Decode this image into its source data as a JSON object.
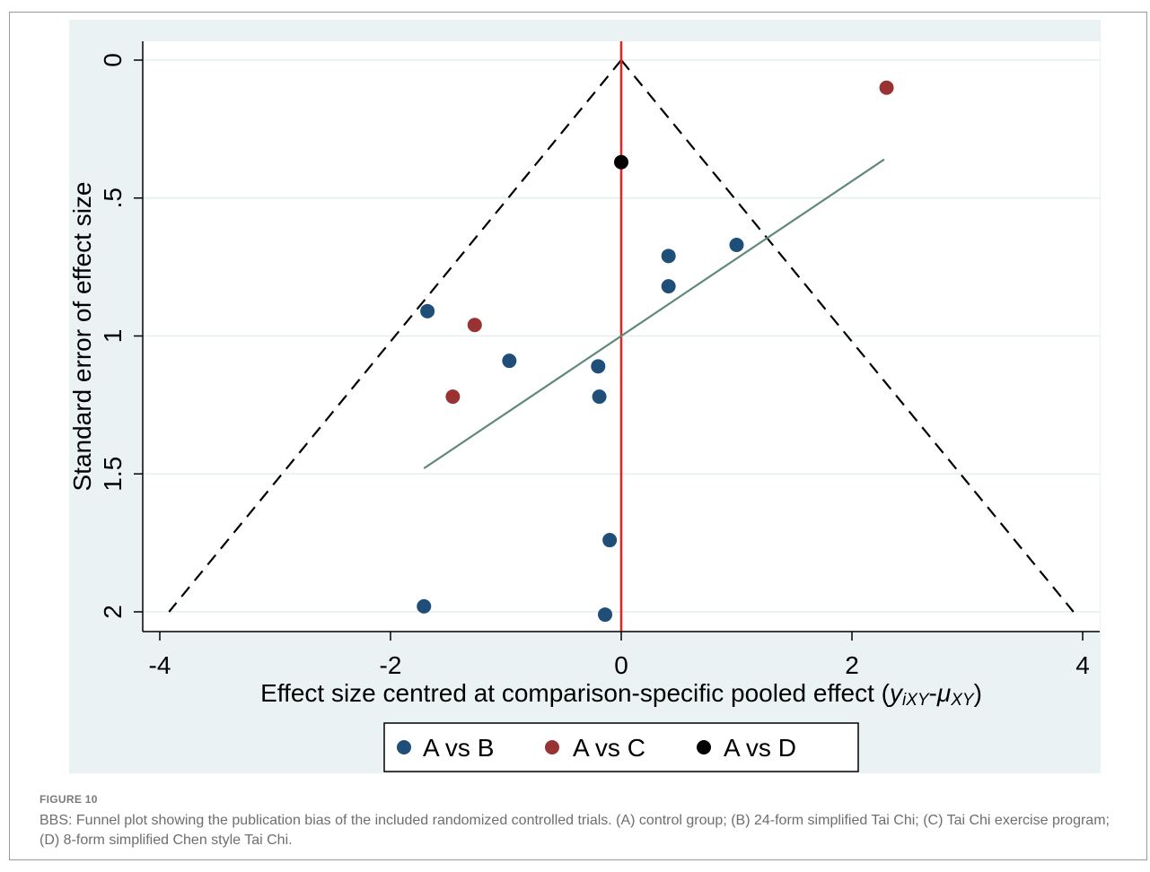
{
  "caption": {
    "label": "FIGURE 10",
    "text": "BBS: Funnel plot showing the publication bias of the included randomized controlled trials. (A) control group; (B) 24-form simplified Tai Chi; (C) Tai Chi exercise program; (D) 8-form simplified Chen style Tai Chi."
  },
  "chart_data": {
    "type": "scatter",
    "xlabel_main": "Effect size centred at comparison-specific pooled effect (",
    "xlabel_sym1": "y",
    "xlabel_sub1": "iXY",
    "xlabel_dash": "-",
    "xlabel_sym2": "μ",
    "xlabel_sub2": "XY",
    "xlabel_close": ")",
    "ylabel": "Standard error of effect size",
    "xlim": [
      -4.1,
      4.1
    ],
    "ylim": [
      0,
      2.07
    ],
    "y_reversed": true,
    "x_ticks": [
      -4,
      -2,
      0,
      2,
      4
    ],
    "x_tick_labels": [
      "-4",
      "-2",
      "0",
      "2",
      "4"
    ],
    "y_ticks": [
      0,
      0.5,
      1,
      1.5,
      2
    ],
    "y_tick_labels": [
      "0",
      ".5",
      "1",
      "1.5",
      "2"
    ],
    "grid": "horizontal",
    "legend_position": "bottom",
    "series": [
      {
        "name": "A vs B",
        "color": "#1f4e79",
        "points": [
          {
            "x": -1.68,
            "y": 0.91
          },
          {
            "x": -0.97,
            "y": 1.09
          },
          {
            "x": -0.2,
            "y": 1.11
          },
          {
            "x": -0.19,
            "y": 1.22
          },
          {
            "x": 0.41,
            "y": 0.71
          },
          {
            "x": 0.41,
            "y": 0.82
          },
          {
            "x": 1.0,
            "y": 0.67
          },
          {
            "x": -0.1,
            "y": 1.74
          },
          {
            "x": -1.71,
            "y": 1.98
          },
          {
            "x": -0.14,
            "y": 2.01
          }
        ]
      },
      {
        "name": "A vs C",
        "color": "#993333",
        "points": [
          {
            "x": -1.27,
            "y": 0.96
          },
          {
            "x": -1.46,
            "y": 1.22
          },
          {
            "x": 2.3,
            "y": 0.1
          }
        ]
      },
      {
        "name": "A vs D",
        "color": "#000000",
        "points": [
          {
            "x": 0.0,
            "y": 0.37
          }
        ]
      }
    ],
    "reference_line": {
      "x": 0,
      "color": "#e8221f"
    },
    "funnel_lines": {
      "apex": [
        0,
        0
      ],
      "left_base": [
        -3.92,
        2.0
      ],
      "right_base": [
        3.92,
        2.0
      ],
      "style": "dashed",
      "color": "#000000"
    },
    "regression_line": {
      "start": [
        -1.71,
        1.48
      ],
      "end": [
        2.28,
        0.36
      ],
      "color": "#5f8a7a"
    }
  }
}
